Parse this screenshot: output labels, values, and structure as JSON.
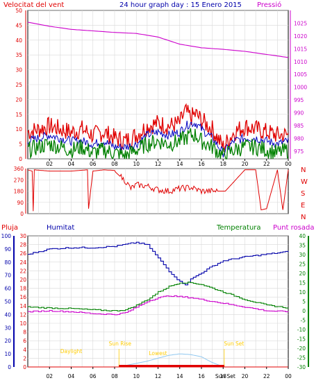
{
  "header": {
    "left": "Velocitat del vent",
    "center": "24 hour graph day : 15 Enero 2015",
    "right": "Pressió"
  },
  "panel3_labels": {
    "rain": "Pluja",
    "humidity": "Humitat",
    "temperature": "Temperatura",
    "dewpoint": "Punt rosada"
  },
  "colors": {
    "wind": "#e00000",
    "avg_wind": "#0000c0",
    "gust_low": "#008000",
    "pressure": "#cc00cc",
    "humidity": "#0000aa",
    "temperature": "#008000",
    "dewpoint": "#cc00cc",
    "rain": "#e00000",
    "sun": "#ffcc00",
    "solar": "#8ec7f0",
    "grid": "#d8d8d8"
  },
  "x_ticks": [
    "02",
    "04",
    "06",
    "08",
    "10",
    "12",
    "14",
    "16",
    "18",
    "20",
    "22",
    "00"
  ],
  "x_tick_hours": [
    2,
    4,
    6,
    8,
    10,
    12,
    14,
    16,
    18,
    20,
    22,
    24
  ],
  "compass": [
    "N",
    "W",
    "S",
    "E",
    "N"
  ],
  "sun_events": {
    "daylight_label": "Daylight",
    "sunrise_label": "Sun Rise",
    "lowest_label": "Lowest",
    "sunset_label": "Sun Set",
    "sunrise_hour": 8.4,
    "sunset_hour": 18.1
  },
  "bottom_axis_extra": "Sun Set",
  "chart_data": [
    {
      "type": "line",
      "name": "wind",
      "title": "Velocitat del vent",
      "y_ticks": [
        0,
        5,
        10,
        15,
        20,
        25,
        30,
        35,
        40,
        45,
        50
      ],
      "ylim": [
        0,
        50
      ],
      "series": [
        {
          "name": "Velocitat del vent",
          "color": "#e00000",
          "x": [
            0,
            1,
            2,
            3,
            4,
            5,
            6,
            7,
            8,
            9,
            10,
            11,
            12,
            13,
            14,
            14.5,
            15,
            15.5,
            16,
            17,
            18,
            19,
            20,
            21,
            22,
            23,
            24
          ],
          "values": [
            9,
            10,
            11,
            10,
            9,
            10,
            8,
            9,
            7,
            6,
            8,
            11,
            12,
            11,
            12,
            16,
            14,
            15,
            13,
            10,
            4,
            9,
            11,
            10,
            9,
            8,
            8
          ]
        },
        {
          "name": "gust",
          "color": "#0000c0",
          "x": [
            0,
            1,
            2,
            3,
            4,
            5,
            6,
            7,
            8,
            9,
            10,
            11,
            12,
            13,
            14,
            14.5,
            15,
            15.5,
            16,
            17,
            18,
            19,
            20,
            21,
            22,
            23,
            24
          ],
          "values": [
            6,
            7,
            8,
            7,
            6,
            6,
            5,
            6,
            4,
            4,
            5,
            8,
            9,
            8,
            9,
            11,
            12,
            12,
            10,
            7,
            2,
            6,
            7,
            7,
            6,
            5,
            6
          ]
        },
        {
          "name": "gust-low",
          "color": "#008000",
          "x": [
            0,
            1,
            2,
            3,
            4,
            5,
            6,
            7,
            8,
            9,
            10,
            11,
            12,
            13,
            14,
            14.5,
            15,
            15.5,
            16,
            17,
            18,
            19,
            20,
            21,
            22,
            23,
            24
          ],
          "values": [
            3,
            4,
            5,
            4,
            3,
            4,
            2,
            3,
            2,
            1,
            3,
            5,
            6,
            5,
            6,
            7,
            8,
            8,
            6,
            4,
            1,
            3,
            4,
            4,
            3,
            2,
            3
          ]
        }
      ],
      "right_axis": {
        "title": "Pressió",
        "ticks": [
          975,
          980,
          985,
          990,
          995,
          1000,
          1005,
          1010,
          1015,
          1020,
          1025
        ],
        "ylim": [
          972,
          1030
        ],
        "pressure_x": [
          0,
          2,
          4,
          6,
          8,
          10,
          12,
          14,
          16,
          18,
          20,
          22,
          24
        ],
        "pressure_values": [
          1025.4,
          1023.8,
          1022.6,
          1022.0,
          1021.4,
          1021.0,
          1019.6,
          1016.8,
          1015.4,
          1014.8,
          1014.0,
          1012.8,
          1011.6
        ]
      }
    },
    {
      "type": "scatter",
      "name": "wind-direction",
      "y_ticks": [
        0,
        90,
        180,
        270,
        360
      ],
      "ylim": [
        0,
        360
      ],
      "x": [
        0,
        0.4,
        0.5,
        0.6,
        2,
        4,
        5.5,
        5.6,
        6,
        7,
        8,
        8.1,
        9,
        9.5,
        10,
        11,
        12,
        13,
        14,
        15,
        16,
        17,
        18,
        18.2,
        20,
        21,
        21.5,
        22,
        23,
        23.5,
        24
      ],
      "values": [
        350,
        340,
        20,
        350,
        340,
        340,
        350,
        40,
        340,
        350,
        345,
        330,
        260,
        200,
        230,
        220,
        190,
        180,
        200,
        210,
        180,
        180,
        180,
        180,
        350,
        350,
        30,
        40,
        350,
        30,
        350
      ]
    },
    {
      "type": "line",
      "name": "humidity-temp",
      "rain_axis": {
        "ticks": [
          0,
          2,
          4,
          6,
          8,
          10,
          12,
          14,
          16,
          18,
          20,
          22,
          24,
          26,
          28,
          30
        ],
        "ylim": [
          0,
          30
        ]
      },
      "humidity_axis": {
        "ticks": [
          0,
          10,
          20,
          30,
          40,
          50,
          60,
          70,
          80,
          90,
          100
        ],
        "ylim": [
          0,
          100
        ]
      },
      "temperature_axis": {
        "ticks": [
          -30,
          -25,
          -20,
          -15,
          -10,
          -5,
          0,
          5,
          10,
          15,
          20,
          25,
          30,
          35,
          40
        ],
        "ylim": [
          -30,
          40
        ]
      },
      "series": [
        {
          "name": "Humitat",
          "x": [
            0,
            1,
            2,
            4,
            6,
            8,
            10,
            11,
            12,
            13,
            14,
            14.5,
            15,
            16,
            17,
            18,
            20,
            22,
            24
          ],
          "values": [
            86,
            88,
            90,
            91,
            91,
            92,
            95,
            93,
            83,
            73,
            65,
            63,
            67,
            72,
            77,
            81,
            84,
            86,
            88
          ]
        },
        {
          "name": "Temperatura",
          "x": [
            0,
            2,
            4,
            6,
            8,
            9,
            10,
            11,
            12,
            13,
            14,
            15,
            16,
            17,
            18,
            20,
            22,
            24
          ],
          "values": [
            2,
            1.5,
            1.2,
            0.5,
            0,
            0.5,
            3,
            6,
            10,
            13,
            15,
            15,
            14,
            12,
            10,
            6,
            3,
            1.5
          ]
        },
        {
          "name": "Punt rosada",
          "x": [
            0,
            2,
            4,
            6,
            8,
            9,
            10,
            11,
            12,
            13,
            14,
            15,
            16,
            17,
            18,
            20,
            22,
            24
          ],
          "values": [
            -0.5,
            0,
            -0.5,
            -1.5,
            -2,
            -1,
            2,
            5,
            7,
            8,
            7.5,
            7,
            6,
            5,
            4,
            2,
            0,
            -0.5
          ]
        }
      ],
      "rain_x": [
        0,
        24
      ],
      "rain_values": [
        0,
        0
      ],
      "solar_x": [
        8.4,
        9,
        10,
        11,
        12,
        13,
        14,
        15,
        16,
        17,
        18.1
      ],
      "solar_values": [
        0,
        1,
        2.5,
        4,
        6,
        8,
        9,
        8.5,
        7,
        3,
        0
      ]
    }
  ]
}
